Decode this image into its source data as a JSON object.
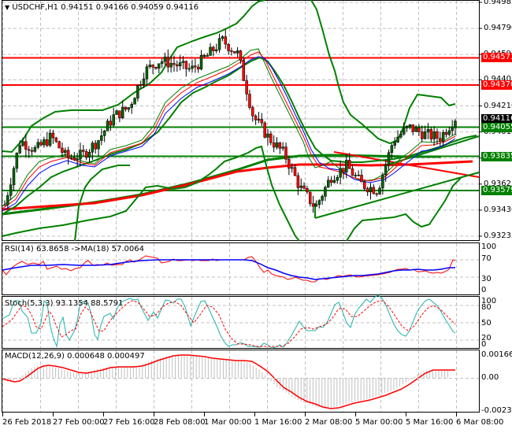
{
  "header": {
    "symbol": "USDCHF,H1",
    "ohlc": "0.94151 0.94166 0.94059 0.94116",
    "title": "USDCHF,H1  0.94151 0.94166 0.94059 0.94116"
  },
  "colors": {
    "background": "#ffffff",
    "grid": "#c0c0c0",
    "bull_candle": "#006400",
    "bear_candle": "#ff0000",
    "support_line": "#008000",
    "resistance_line": "#ff0000",
    "bollinger": "#008000",
    "ma_fast": "#008000",
    "ma_mid": "#ff0000",
    "ma_slow": "#0000ff",
    "rsi": "#ff0000",
    "rsi_ma": "#0000ff",
    "stoch_main": "#20b2aa",
    "stoch_signal": "#ff0000",
    "macd_hist": "#c0c0c0",
    "macd_signal": "#ff0000",
    "current_price_bg": "#000000",
    "red_label_bg": "#ff0000",
    "green_label_bg": "#008000"
  },
  "price_axis": {
    "ticks": [
      "0.94985",
      "0.94790",
      "0.94595",
      "0.94405",
      "0.94210",
      "0.94015",
      "0.93820",
      "0.93625",
      "0.93430",
      "0.93235"
    ],
    "labels": {
      "r1": "0.94573",
      "r2": "0.94370",
      "current": "0.94116",
      "s1": "0.94055",
      "s2": "0.93835",
      "s3": "0.93579"
    }
  },
  "indicators": {
    "rsi": {
      "label": "RSI(14) 63.8658  ->MA(18) 57.0064",
      "levels": [
        "100",
        "70",
        "30",
        "0"
      ]
    },
    "stoch": {
      "label": "Stoch(5,3,3) 93.1354 88.5791",
      "levels": [
        "100",
        "80",
        "50",
        "20",
        "0"
      ]
    },
    "macd": {
      "label": "MACD(12,26,9) 0.000648 0.000497",
      "levels": [
        "0.00166",
        "0.00",
        "-0.002356"
      ]
    }
  },
  "time_axis": {
    "labels": [
      "26 Feb 2018",
      "27 Feb 00:00",
      "27 Feb 16:00",
      "28 Feb 08:00",
      "1 Mar 00:00",
      "1 Mar 16:00",
      "2 Mar 08:00",
      "5 Mar 00:00",
      "5 Mar 16:00",
      "6 Mar 08:00"
    ]
  },
  "chart_data": {
    "type": "candlestick",
    "title": "USDCHF,H1",
    "xlabel": "",
    "ylabel": "Price",
    "ylim": [
      0.93235,
      0.94985
    ],
    "grid": true,
    "x_ticks": [
      "26 Feb 2018",
      "27 Feb 00:00",
      "27 Feb 16:00",
      "28 Feb 08:00",
      "1 Mar 00:00",
      "1 Mar 16:00",
      "2 Mar 08:00",
      "5 Mar 00:00",
      "5 Mar 16:00",
      "6 Mar 08:00"
    ],
    "last_bar": {
      "open": 0.94151,
      "high": 0.94166,
      "low": 0.94059,
      "close": 0.94116
    },
    "horizontal_levels": [
      {
        "name": "resistance",
        "value": 0.94573,
        "color": "#ff0000"
      },
      {
        "name": "resistance",
        "value": 0.9437,
        "color": "#ff0000"
      },
      {
        "name": "support",
        "value": 0.94055,
        "color": "#008000"
      },
      {
        "name": "support",
        "value": 0.93835,
        "color": "#008000"
      },
      {
        "name": "support",
        "value": 0.93579,
        "color": "#008000"
      }
    ],
    "approx_close_path": [
      0.9347,
      0.9395,
      0.9388,
      0.9398,
      0.9382,
      0.9384,
      0.9395,
      0.9413,
      0.942,
      0.9447,
      0.9455,
      0.9452,
      0.9448,
      0.9458,
      0.947,
      0.946,
      0.9413,
      0.9397,
      0.9385,
      0.936,
      0.9345,
      0.9368,
      0.9376,
      0.9362,
      0.9358,
      0.9395,
      0.9405,
      0.94,
      0.9397,
      0.9412
    ],
    "panels": [
      {
        "name": "RSI(14)",
        "value": 63.8658,
        "ma_name": "MA(18)",
        "ma_value": 57.0064,
        "ylim": [
          0,
          100
        ],
        "levels": [
          30,
          70
        ]
      },
      {
        "name": "Stoch(5,3,3)",
        "main": 93.1354,
        "signal": 88.5791,
        "ylim": [
          0,
          100
        ],
        "levels": [
          20,
          50,
          80
        ]
      },
      {
        "name": "MACD(12,26,9)",
        "main": 0.000648,
        "signal": 0.000497,
        "ylim": [
          -0.002356,
          0.00166
        ]
      }
    ]
  }
}
